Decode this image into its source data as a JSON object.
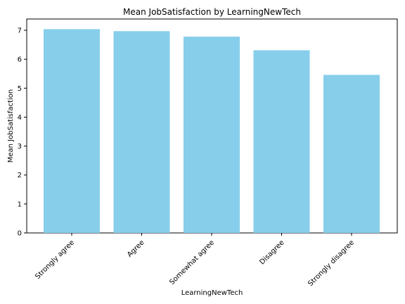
{
  "chart_data": {
    "type": "bar",
    "title": "Mean JobSatisfaction by LearningNewTech",
    "xlabel": "LearningNewTech",
    "ylabel": "Mean JobSatisfaction",
    "categories": [
      "Strongly agree",
      "Agree",
      "Somewhat agree",
      "Disagree",
      "Strongly disagree"
    ],
    "values": [
      7.04,
      6.97,
      6.78,
      6.31,
      5.46
    ],
    "ylim": [
      0,
      7.39
    ],
    "yticks": [
      "0",
      "1",
      "2",
      "3",
      "4",
      "5",
      "6",
      "7"
    ],
    "grid": false,
    "bar_color": "#87ceeb"
  }
}
